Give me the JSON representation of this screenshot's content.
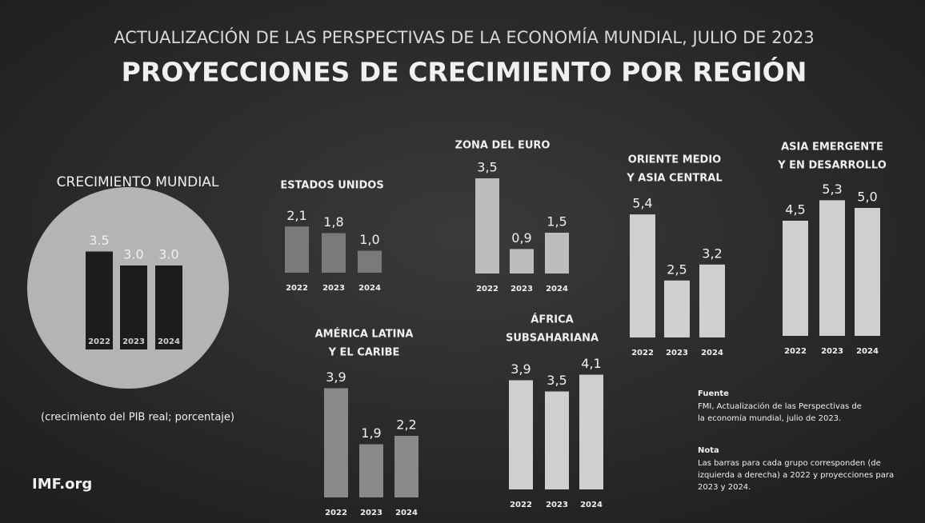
{
  "header": {
    "kicker": "ACTUALIZACIÓN DE LAS PERSPECTIVAS DE LA ECONOMÍA MUNDIAL, JULIO DE 2023",
    "title": "PROYECCIONES DE CRECIMIENTO POR REGIÓN"
  },
  "chart_data": [
    {
      "type": "bar",
      "title": [
        "CRECIMIENTO MUNDIAL"
      ],
      "categories": [
        "2022",
        "2023",
        "2024"
      ],
      "values": [
        3.5,
        3.0,
        3.0
      ],
      "value_labels": [
        "3.5",
        "3.0",
        "3.0"
      ],
      "color": "#1c1c1c",
      "note": "(crecimiento del PIB real; porcentaje)"
    },
    {
      "type": "bar",
      "title": [
        "ESTADOS UNIDOS"
      ],
      "categories": [
        "2022",
        "2023",
        "2024"
      ],
      "values": [
        2.1,
        1.8,
        1.0
      ],
      "value_labels": [
        "2,1",
        "1,8",
        "1,0"
      ],
      "color": "#7a7a7a"
    },
    {
      "type": "bar",
      "title": [
        "ZONA DEL EURO"
      ],
      "categories": [
        "2022",
        "2023",
        "2024"
      ],
      "values": [
        3.5,
        0.9,
        1.5
      ],
      "value_labels": [
        "3,5",
        "0,9",
        "1,5"
      ],
      "color": "#bdbdbd"
    },
    {
      "type": "bar",
      "title": [
        "ORIENTE MEDIO",
        "Y ASIA CENTRAL"
      ],
      "categories": [
        "2022",
        "2023",
        "2024"
      ],
      "values": [
        5.4,
        2.5,
        3.2
      ],
      "value_labels": [
        "5,4",
        "2,5",
        "3,2"
      ],
      "color": "#cfcfcf"
    },
    {
      "type": "bar",
      "title": [
        "ASIA EMERGENTE",
        "Y EN DESARROLLO"
      ],
      "categories": [
        "2022",
        "2023",
        "2024"
      ],
      "values": [
        4.5,
        5.3,
        5.0
      ],
      "value_labels": [
        "4,5",
        "5,3",
        "5,0"
      ],
      "color": "#cfcfcf"
    },
    {
      "type": "bar",
      "title": [
        "AMÉRICA LATINA",
        "Y EL CARIBE"
      ],
      "categories": [
        "2022",
        "2023",
        "2024"
      ],
      "values": [
        3.9,
        1.9,
        2.2
      ],
      "value_labels": [
        "3,9",
        "1,9",
        "2,2"
      ],
      "color": "#8a8a8a"
    },
    {
      "type": "bar",
      "title": [
        "ÁFRICA",
        "SUBSAHARIANA"
      ],
      "categories": [
        "2022",
        "2023",
        "2024"
      ],
      "values": [
        3.9,
        3.5,
        4.1
      ],
      "value_labels": [
        "3,9",
        "3,5",
        "4,1"
      ],
      "color": "#cfcfcf"
    }
  ],
  "footer": {
    "brand": "IMF.org",
    "source_title": "Fuente",
    "source": [
      "FMI, Actualización de las Perspectivas de",
      "la economía mundial, julio de 2023."
    ],
    "note_title": "Nota",
    "note": [
      "Las barras para cada grupo corresponden (de",
      "izquierda a derecha) a 2022 y proyecciones para",
      "2023 y 2024."
    ]
  }
}
